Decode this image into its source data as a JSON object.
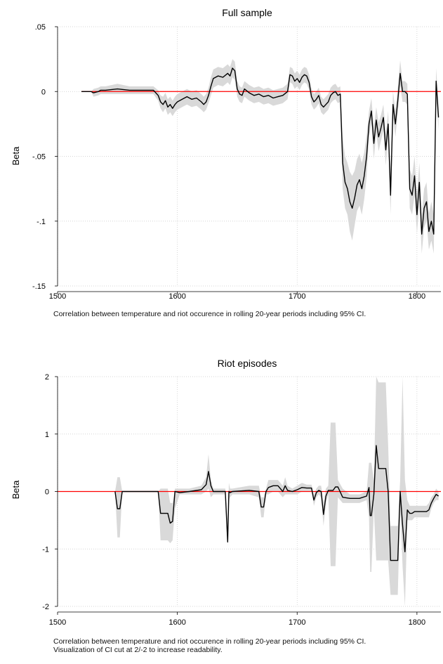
{
  "figure": {
    "panels": [
      {
        "caption": [
          "Correlation between temperature and riot occurence in rolling 20-year periods including 95% CI."
        ]
      },
      {
        "caption": [
          "Correlation between temperature and riot occurence in rolling 20-year periods including 95% CI.",
          "Visualization of CI cut at 2/-2 to increase readability."
        ]
      }
    ]
  },
  "colors": {
    "line": "#000000",
    "ci_band": "#d9d9d9",
    "zero_line": "#ff0000",
    "grid": "#c8c8c8"
  },
  "chart_data": [
    {
      "type": "line",
      "title": "Full sample",
      "xlabel": "",
      "ylabel": "Beta",
      "xlim": [
        1500,
        1820
      ],
      "ylim": [
        -0.15,
        0.05
      ],
      "xticks": [
        1500,
        1600,
        1700,
        1800
      ],
      "xtick_labels": [
        "1500",
        "1600",
        "1700",
        "1800"
      ],
      "yticks": [
        0.05,
        0,
        -0.05,
        -0.1,
        -0.15
      ],
      "ytick_labels": [
        ".05",
        "0",
        "-.05",
        "-.1",
        "-.15"
      ],
      "grid": true,
      "reference_line": 0,
      "series": [
        {
          "x": [
            1520,
            1528,
            1530,
            1534,
            1536,
            1540,
            1550,
            1560,
            1570,
            1580,
            1584,
            1586,
            1588,
            1590,
            1592,
            1594,
            1596,
            1598,
            1600,
            1604,
            1608,
            1612,
            1616,
            1620,
            1622,
            1624,
            1626,
            1628,
            1630,
            1634,
            1638,
            1642,
            1644,
            1646,
            1648,
            1650,
            1652,
            1654,
            1656,
            1660,
            1664,
            1668,
            1672,
            1676,
            1680,
            1684,
            1688,
            1692,
            1694,
            1696,
            1698,
            1700,
            1702,
            1704,
            1706,
            1708,
            1710,
            1712,
            1714,
            1716,
            1718,
            1720,
            1722,
            1724,
            1726,
            1728,
            1730,
            1732,
            1734,
            1736,
            1738,
            1740,
            1742,
            1744,
            1746,
            1748,
            1750,
            1752,
            1754,
            1756,
            1758,
            1760,
            1762,
            1764,
            1766,
            1768,
            1770,
            1772,
            1774,
            1776,
            1778,
            1780,
            1782,
            1784,
            1786,
            1788,
            1790,
            1792,
            1794,
            1796,
            1798,
            1800,
            1802,
            1804,
            1806,
            1808,
            1810,
            1812,
            1814,
            1816,
            1818
          ],
          "y": [
            0,
            0,
            -0.001,
            0,
            0.001,
            0.001,
            0.002,
            0.001,
            0.001,
            0.001,
            -0.003,
            -0.008,
            -0.01,
            -0.007,
            -0.012,
            -0.01,
            -0.013,
            -0.01,
            -0.008,
            -0.006,
            -0.004,
            -0.006,
            -0.005,
            -0.008,
            -0.01,
            -0.008,
            -0.003,
            0.004,
            0.01,
            0.012,
            0.011,
            0.014,
            0.012,
            0.018,
            0.016,
            0.002,
            -0.002,
            -0.003,
            0.002,
            -0.001,
            -0.003,
            -0.002,
            -0.004,
            -0.003,
            -0.005,
            -0.004,
            -0.003,
            0,
            0.013,
            0.012,
            0.008,
            0.01,
            0.007,
            0.011,
            0.013,
            0.012,
            0.007,
            -0.004,
            -0.008,
            -0.006,
            -0.003,
            -0.01,
            -0.012,
            -0.01,
            -0.008,
            -0.003,
            -0.001,
            0,
            -0.003,
            -0.002,
            -0.055,
            -0.07,
            -0.075,
            -0.085,
            -0.09,
            -0.082,
            -0.072,
            -0.068,
            -0.075,
            -0.065,
            -0.05,
            -0.025,
            -0.015,
            -0.04,
            -0.022,
            -0.035,
            -0.028,
            -0.02,
            -0.045,
            -0.025,
            -0.08,
            -0.01,
            -0.025,
            -0.007,
            0.014,
            0,
            0,
            -0.002,
            -0.075,
            -0.08,
            -0.065,
            -0.095,
            -0.07,
            -0.11,
            -0.09,
            -0.085,
            -0.108,
            -0.1,
            -0.11,
            0.008,
            -0.02
          ],
          "ci_lower": [
            0,
            0,
            -0.004,
            -0.003,
            -0.002,
            -0.002,
            -0.002,
            -0.002,
            -0.002,
            -0.002,
            -0.007,
            -0.013,
            -0.016,
            -0.013,
            -0.018,
            -0.016,
            -0.019,
            -0.016,
            -0.014,
            -0.012,
            -0.01,
            -0.012,
            -0.011,
            -0.014,
            -0.016,
            -0.014,
            -0.009,
            -0.003,
            0.003,
            0.005,
            0.004,
            0.007,
            0.005,
            0.011,
            0.009,
            -0.004,
            -0.008,
            -0.009,
            -0.004,
            -0.007,
            -0.009,
            -0.008,
            -0.01,
            -0.009,
            -0.011,
            -0.01,
            -0.009,
            -0.006,
            0.007,
            0.006,
            0.002,
            0.004,
            0.001,
            0.005,
            0.007,
            0.006,
            0.001,
            -0.01,
            -0.014,
            -0.012,
            -0.009,
            -0.016,
            -0.018,
            -0.016,
            -0.014,
            -0.009,
            -0.007,
            -0.006,
            -0.009,
            -0.008,
            -0.075,
            -0.09,
            -0.095,
            -0.108,
            -0.115,
            -0.103,
            -0.092,
            -0.088,
            -0.095,
            -0.083,
            -0.066,
            -0.035,
            -0.025,
            -0.052,
            -0.032,
            -0.046,
            -0.038,
            -0.03,
            -0.057,
            -0.035,
            -0.095,
            -0.02,
            -0.035,
            -0.017,
            0.004,
            -0.008,
            -0.008,
            -0.01,
            -0.09,
            -0.095,
            -0.08,
            -0.11,
            -0.085,
            -0.125,
            -0.105,
            -0.1,
            -0.122,
            -0.115,
            -0.125,
            -0.002,
            -0.03
          ],
          "ci_upper": [
            0,
            0,
            0.002,
            0.003,
            0.004,
            0.004,
            0.006,
            0.004,
            0.004,
            0.004,
            0.001,
            -0.003,
            -0.004,
            -0.001,
            -0.006,
            -0.004,
            -0.007,
            -0.004,
            -0.002,
            0,
            0.002,
            0,
            0.001,
            -0.002,
            -0.004,
            -0.002,
            0.003,
            0.011,
            0.017,
            0.019,
            0.018,
            0.021,
            0.019,
            0.025,
            0.023,
            0.008,
            0.004,
            0.003,
            0.008,
            0.005,
            0.003,
            0.004,
            0.002,
            0.003,
            0.001,
            0.002,
            0.003,
            0.006,
            0.019,
            0.018,
            0.014,
            0.016,
            0.013,
            0.017,
            0.019,
            0.018,
            0.013,
            0.002,
            -0.002,
            0,
            0.003,
            -0.004,
            -0.006,
            -0.004,
            -0.002,
            0.003,
            0.005,
            0.006,
            0.003,
            0.004,
            -0.035,
            -0.05,
            -0.055,
            -0.062,
            -0.065,
            -0.061,
            -0.052,
            -0.048,
            -0.055,
            -0.047,
            -0.034,
            -0.015,
            -0.005,
            -0.028,
            -0.012,
            -0.024,
            -0.018,
            -0.01,
            -0.033,
            -0.015,
            -0.065,
            0,
            -0.015,
            0.003,
            0.024,
            0.008,
            0.008,
            0.006,
            -0.06,
            -0.065,
            -0.05,
            -0.08,
            -0.055,
            -0.095,
            -0.075,
            -0.07,
            -0.094,
            -0.085,
            -0.095,
            0.018,
            -0.01
          ]
        }
      ]
    },
    {
      "type": "line",
      "title": "Riot episodes",
      "xlabel": "",
      "ylabel": "Beta",
      "xlim": [
        1500,
        1820
      ],
      "ylim": [
        -2,
        2
      ],
      "xticks": [
        1500,
        1600,
        1700,
        1800
      ],
      "xtick_labels": [
        "1500",
        "1600",
        "1700",
        "1800"
      ],
      "yticks": [
        2,
        1,
        0,
        -1,
        -2
      ],
      "ytick_labels": [
        "2",
        "1",
        "0",
        "-1",
        "-2"
      ],
      "grid": true,
      "reference_line": 0,
      "series": [
        {
          "x": [
            1548,
            1550,
            1552,
            1554,
            1556,
            1584,
            1586,
            1588,
            1592,
            1594,
            1596,
            1598,
            1602,
            1610,
            1620,
            1624,
            1626,
            1628,
            1630,
            1632,
            1640,
            1642,
            1643,
            1644,
            1646,
            1660,
            1668,
            1670,
            1672,
            1674,
            1676,
            1680,
            1684,
            1688,
            1690,
            1692,
            1696,
            1700,
            1704,
            1708,
            1712,
            1714,
            1716,
            1718,
            1720,
            1722,
            1724,
            1726,
            1728,
            1730,
            1732,
            1734,
            1738,
            1744,
            1752,
            1758,
            1760,
            1761,
            1762,
            1764,
            1766,
            1768,
            1770,
            1774,
            1776,
            1778,
            1784,
            1786,
            1788,
            1790,
            1792,
            1794,
            1796,
            1798,
            1800,
            1808,
            1810,
            1812,
            1814,
            1816,
            1818
          ],
          "y": [
            0,
            -0.3,
            -0.3,
            0,
            0,
            0,
            -0.38,
            -0.38,
            -0.38,
            -0.55,
            -0.52,
            0,
            -0.02,
            0,
            0.03,
            0.12,
            0.35,
            0.1,
            0,
            0,
            0,
            -0.88,
            0,
            -0.02,
            0,
            0.02,
            0,
            -0.27,
            -0.27,
            0,
            0.07,
            0.1,
            0.1,
            0,
            0.1,
            0.02,
            0,
            0.03,
            0.07,
            0.06,
            0.06,
            -0.15,
            -0.02,
            0.02,
            0,
            -0.4,
            -0.08,
            0.02,
            0.02,
            0.02,
            0.08,
            0.08,
            -0.1,
            -0.12,
            -0.12,
            -0.08,
            0.07,
            -0.42,
            -0.42,
            -0.05,
            0.8,
            0.4,
            0.4,
            0.4,
            0,
            -1.2,
            -1.2,
            0,
            -0.58,
            -1.05,
            -0.32,
            -0.38,
            -0.38,
            -0.35,
            -0.35,
            -0.35,
            -0.32,
            -0.2,
            -0.12,
            -0.05,
            -0.08
          ],
          "ci_lower": [
            0,
            -0.8,
            -0.8,
            0,
            0,
            0,
            -0.85,
            -0.85,
            -0.85,
            -0.9,
            -0.85,
            -0.3,
            -0.05,
            -0.05,
            -0.05,
            0,
            0.05,
            -0.1,
            -0.05,
            -0.05,
            -0.05,
            -0.95,
            -0.15,
            -0.1,
            -0.05,
            -0.05,
            -0.1,
            -0.45,
            -0.45,
            -0.05,
            -0.05,
            0,
            0,
            -0.1,
            -0.05,
            -0.05,
            -0.05,
            -0.05,
            0,
            0,
            0,
            -0.25,
            -0.1,
            -0.05,
            -0.1,
            -0.6,
            -0.2,
            -0.05,
            -1.3,
            -1.3,
            -1.3,
            -0.1,
            -0.2,
            -0.2,
            -0.2,
            -0.15,
            -0.45,
            -1.4,
            -1.4,
            -0.3,
            -1.2,
            -1.2,
            -1.2,
            -1.2,
            -1.2,
            -1.8,
            -1.8,
            -0.2,
            -1.3,
            -2,
            -0.5,
            -0.5,
            -0.5,
            -0.45,
            -0.45,
            -0.45,
            -0.45,
            -0.3,
            -0.2,
            -0.15,
            -0.15
          ],
          "ci_upper": [
            0,
            0.25,
            0.25,
            0,
            0,
            0,
            0.05,
            0.05,
            0.05,
            -0.2,
            -0.2,
            0.05,
            0.05,
            0.05,
            0.1,
            0.25,
            0.65,
            0.2,
            0.05,
            0.05,
            0.05,
            -0.8,
            0.15,
            0.05,
            0.05,
            0.1,
            0.1,
            -0.1,
            -0.1,
            0.05,
            0.2,
            0.2,
            0.2,
            0.1,
            0.25,
            0.1,
            0.05,
            0.1,
            0.15,
            0.12,
            0.12,
            -0.05,
            0.05,
            0.1,
            0.1,
            -0.2,
            0.05,
            0.1,
            1.2,
            1.2,
            1.2,
            0.2,
            0.05,
            -0.05,
            -0.05,
            0,
            0.5,
            0.5,
            0.5,
            0.2,
            2,
            1.9,
            1.9,
            1.9,
            0.8,
            -0.6,
            -0.6,
            0.2,
            2,
            0.2,
            -0.15,
            -0.25,
            -0.25,
            -0.25,
            -0.25,
            -0.25,
            -0.2,
            -0.1,
            -0.05,
            0.05,
            0
          ]
        }
      ]
    }
  ]
}
